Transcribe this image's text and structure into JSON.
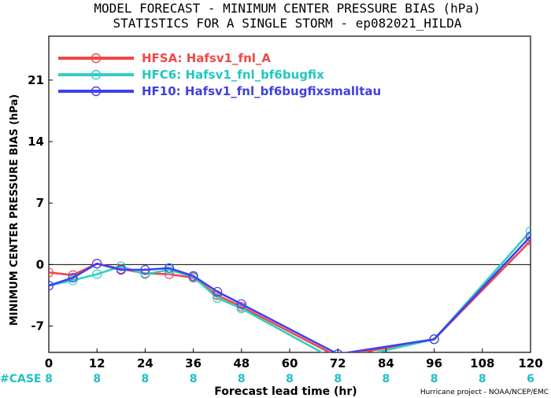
{
  "chart_data": {
    "type": "line",
    "title": "MODEL FORECAST - MINIMUM CENTER PRESSURE BIAS (hPa)",
    "subtitle": "STATISTICS FOR A SINGLE STORM - ep082021_HILDA",
    "xlabel": "Forecast lead time (hr)",
    "ylabel": "MINIMUM CENTER PRESSURE BIAS (hPa)",
    "xlim": [
      0,
      120
    ],
    "ylim": [
      -10,
      26
    ],
    "xticks": [
      "0",
      "12",
      "24",
      "36",
      "48",
      "60",
      "72",
      "84",
      "96",
      "108",
      "120"
    ],
    "yticks": [
      "-7",
      "0",
      "7",
      "14",
      "21"
    ],
    "zero_line": true,
    "legend_position": "top-left",
    "case_label": "#CASE",
    "cases": [
      {
        "x": 0,
        "n": "8"
      },
      {
        "x": 12,
        "n": "8"
      },
      {
        "x": 24,
        "n": "8"
      },
      {
        "x": 36,
        "n": "8"
      },
      {
        "x": 48,
        "n": "8"
      },
      {
        "x": 60,
        "n": "8"
      },
      {
        "x": 72,
        "n": "8"
      },
      {
        "x": 84,
        "n": "8"
      },
      {
        "x": 96,
        "n": "8"
      },
      {
        "x": 108,
        "n": "8"
      },
      {
        "x": 120,
        "n": "6"
      }
    ],
    "credit": "Hurricane project - NOAA/NCEP/EMC",
    "series": [
      {
        "name": "HFSA:  Hafsv1_fnl_A",
        "color": "#f04848",
        "x": [
          0,
          6,
          12,
          18,
          24,
          30,
          36,
          42,
          48,
          72,
          96,
          120
        ],
        "y": [
          -0.9,
          -1.2,
          0.1,
          -0.5,
          -1.0,
          -1.1,
          -1.5,
          -3.5,
          -4.8,
          -10.5,
          -8.5,
          2.7
        ]
      },
      {
        "name": "HFC6:  Hafsv1_fnl_bf6bugfix",
        "color": "#30d0c0",
        "x": [
          0,
          6,
          12,
          18,
          24,
          30,
          36,
          42,
          48,
          72,
          96,
          120
        ],
        "y": [
          -2.4,
          -1.8,
          -1.1,
          -0.2,
          -1.1,
          -0.6,
          -1.4,
          -3.8,
          -5.0,
          -11.0,
          -8.5,
          3.8
        ]
      },
      {
        "name": "HF10:  Hafsv1_fnl_bf6bugfixsmalltau",
        "color": "#4040f0",
        "x": [
          0,
          6,
          12,
          18,
          24,
          30,
          36,
          42,
          48,
          72,
          96,
          120
        ],
        "y": [
          -2.4,
          -1.5,
          0.1,
          -0.6,
          -0.6,
          -0.4,
          -1.3,
          -3.1,
          -4.5,
          -10.2,
          -8.5,
          3.2
        ]
      }
    ]
  }
}
